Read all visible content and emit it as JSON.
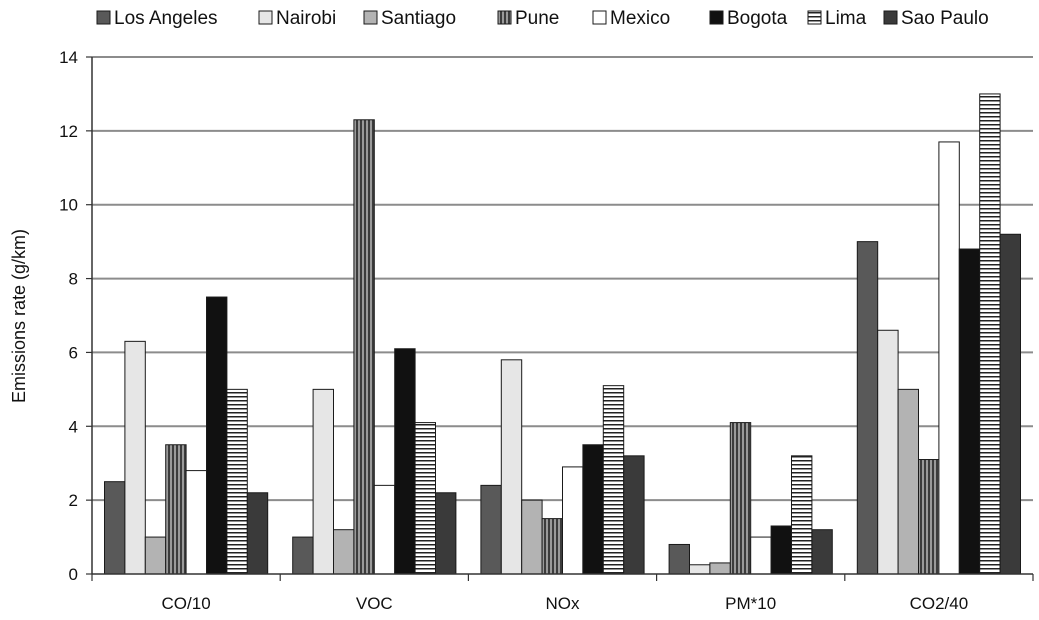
{
  "chart_data": {
    "type": "bar",
    "title": "",
    "xlabel": "",
    "ylabel": "Emissions rate (g/km)",
    "ylim": [
      0,
      14
    ],
    "yticks": [
      0,
      2,
      4,
      6,
      8,
      10,
      12,
      14
    ],
    "grid": true,
    "legend_position": "top",
    "categories": [
      "CO/10",
      "VOC",
      "NOx",
      "PM*10",
      "CO2/40"
    ],
    "series": [
      {
        "name": "Los Angeles",
        "values": [
          2.5,
          1.0,
          2.4,
          0.8,
          9.0
        ],
        "fill": "#595959",
        "pattern": "solid"
      },
      {
        "name": "Nairobi",
        "values": [
          6.3,
          5.0,
          5.8,
          0.25,
          6.6
        ],
        "fill": "#e6e6e6",
        "pattern": "solid"
      },
      {
        "name": "Santiago",
        "values": [
          1.0,
          1.2,
          2.0,
          0.3,
          5.0
        ],
        "fill": "#b3b3b3",
        "pattern": "solid"
      },
      {
        "name": "Pune",
        "values": [
          3.5,
          12.3,
          1.5,
          4.1,
          3.1
        ],
        "fill": "#7f7f7f",
        "pattern": "vertical"
      },
      {
        "name": "Mexico",
        "values": [
          2.8,
          2.4,
          2.9,
          1.0,
          11.7
        ],
        "fill": "#ffffff",
        "pattern": "solid"
      },
      {
        "name": "Bogota",
        "values": [
          7.5,
          6.1,
          3.5,
          1.3,
          8.8
        ],
        "fill": "#111111",
        "pattern": "solid"
      },
      {
        "name": "Lima",
        "values": [
          5.0,
          4.1,
          5.1,
          3.2,
          13.0
        ],
        "fill": "#ffffff",
        "pattern": "horizontal"
      },
      {
        "name": "Sao Paulo",
        "values": [
          2.2,
          2.2,
          3.2,
          1.2,
          9.2
        ],
        "fill": "#3a3a3a",
        "pattern": "solid"
      }
    ]
  }
}
